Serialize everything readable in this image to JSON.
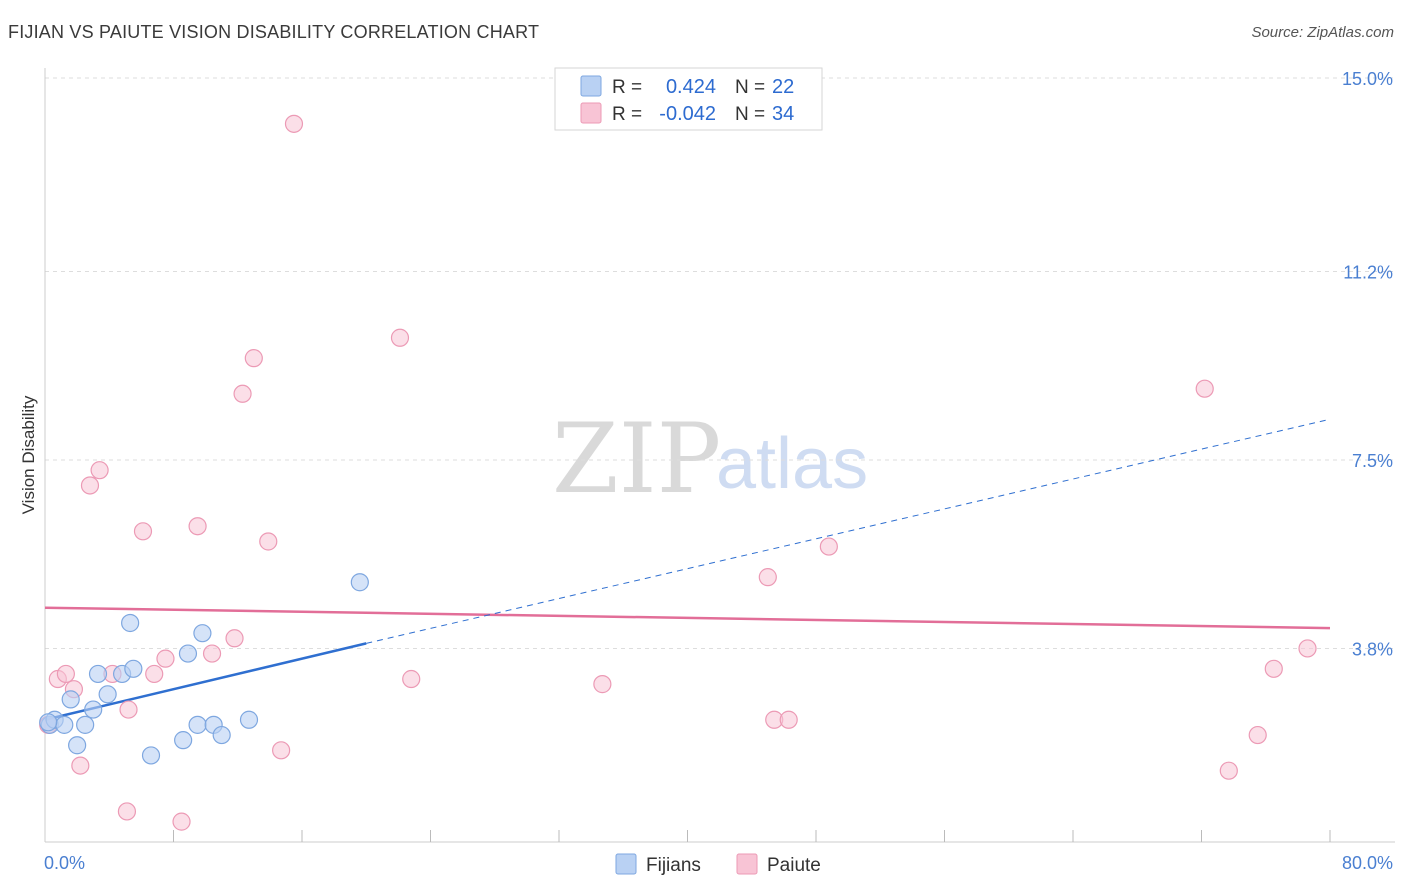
{
  "title": "FIJIAN VS PAIUTE VISION DISABILITY CORRELATION CHART",
  "source": "Source: ZipAtlas.com",
  "colors": {
    "fijians_fill": "#b9d1f3",
    "fijians_stroke": "#7ea7e0",
    "fijians_line": "#2f6fd0",
    "paiute_fill": "#f8c4d5",
    "paiute_stroke": "#ec9ab5",
    "paiute_line": "#e26e98",
    "grid": "#dddddd",
    "axis_text": "#4a7fd1"
  },
  "chart_data": {
    "type": "scatter",
    "xlabel": "",
    "ylabel": "Vision Disability",
    "xlim": [
      0,
      80
    ],
    "ylim": [
      0,
      15
    ],
    "x_tick_labels": [
      "0.0%",
      "80.0%"
    ],
    "y_ticks": [
      3.8,
      7.5,
      11.2,
      15.0
    ],
    "y_tick_labels": [
      "3.8%",
      "7.5%",
      "11.2%",
      "15.0%"
    ],
    "watermark": [
      "ZIP",
      "atlas"
    ],
    "legend": {
      "rows": [
        {
          "r_label": "R =",
          "r_value": "0.424",
          "n_label": "N =",
          "n_value": "22"
        },
        {
          "r_label": "R =",
          "r_value": "-0.042",
          "n_label": "N =",
          "n_value": "34"
        }
      ]
    },
    "series": [
      {
        "name": "Fijians",
        "points": [
          {
            "x": 0.3,
            "y": 2.3
          },
          {
            "x": 0.6,
            "y": 2.4
          },
          {
            "x": 1.2,
            "y": 2.3
          },
          {
            "x": 1.6,
            "y": 2.8
          },
          {
            "x": 2.0,
            "y": 1.9
          },
          {
            "x": 2.5,
            "y": 2.3
          },
          {
            "x": 3.0,
            "y": 2.6
          },
          {
            "x": 3.3,
            "y": 3.3
          },
          {
            "x": 3.9,
            "y": 2.9
          },
          {
            "x": 4.8,
            "y": 3.3
          },
          {
            "x": 5.3,
            "y": 4.3
          },
          {
            "x": 5.5,
            "y": 3.4
          },
          {
            "x": 6.6,
            "y": 1.7
          },
          {
            "x": 8.6,
            "y": 2.0
          },
          {
            "x": 8.9,
            "y": 3.7
          },
          {
            "x": 9.5,
            "y": 2.3
          },
          {
            "x": 9.8,
            "y": 4.1
          },
          {
            "x": 10.5,
            "y": 2.3
          },
          {
            "x": 11.0,
            "y": 2.1
          },
          {
            "x": 12.7,
            "y": 2.4
          },
          {
            "x": 19.6,
            "y": 5.1
          },
          {
            "x": 0.2,
            "y": 2.35
          }
        ],
        "trend": {
          "x0": 0,
          "y0": 2.4,
          "x1": 20,
          "y1": 3.9,
          "dash_x1": 80,
          "dash_y1": 8.3
        }
      },
      {
        "name": "Paiute",
        "points": [
          {
            "x": 0.2,
            "y": 2.3
          },
          {
            "x": 0.8,
            "y": 3.2
          },
          {
            "x": 1.3,
            "y": 3.3
          },
          {
            "x": 1.8,
            "y": 3.0
          },
          {
            "x": 2.2,
            "y": 1.5
          },
          {
            "x": 2.8,
            "y": 7.0
          },
          {
            "x": 3.4,
            "y": 7.3
          },
          {
            "x": 4.2,
            "y": 3.3
          },
          {
            "x": 5.1,
            "y": 0.6
          },
          {
            "x": 5.2,
            "y": 2.6
          },
          {
            "x": 6.1,
            "y": 6.1
          },
          {
            "x": 6.8,
            "y": 3.3
          },
          {
            "x": 7.5,
            "y": 3.6
          },
          {
            "x": 8.5,
            "y": 0.4
          },
          {
            "x": 9.5,
            "y": 6.2
          },
          {
            "x": 10.4,
            "y": 3.7
          },
          {
            "x": 11.8,
            "y": 4.0
          },
          {
            "x": 12.3,
            "y": 8.8
          },
          {
            "x": 13.0,
            "y": 9.5
          },
          {
            "x": 13.9,
            "y": 5.9
          },
          {
            "x": 14.7,
            "y": 1.8
          },
          {
            "x": 15.5,
            "y": 14.1
          },
          {
            "x": 22.1,
            "y": 9.9
          },
          {
            "x": 22.8,
            "y": 3.2
          },
          {
            "x": 34.7,
            "y": 3.1
          },
          {
            "x": 45.0,
            "y": 5.2
          },
          {
            "x": 45.4,
            "y": 2.4
          },
          {
            "x": 46.3,
            "y": 2.4
          },
          {
            "x": 48.8,
            "y": 5.8
          },
          {
            "x": 72.2,
            "y": 8.9
          },
          {
            "x": 73.7,
            "y": 1.4
          },
          {
            "x": 75.5,
            "y": 2.1
          },
          {
            "x": 76.5,
            "y": 3.4
          },
          {
            "x": 78.6,
            "y": 3.8
          }
        ],
        "trend": {
          "x0": 0,
          "y0": 4.6,
          "x1": 80,
          "y1": 4.2
        }
      }
    ]
  }
}
